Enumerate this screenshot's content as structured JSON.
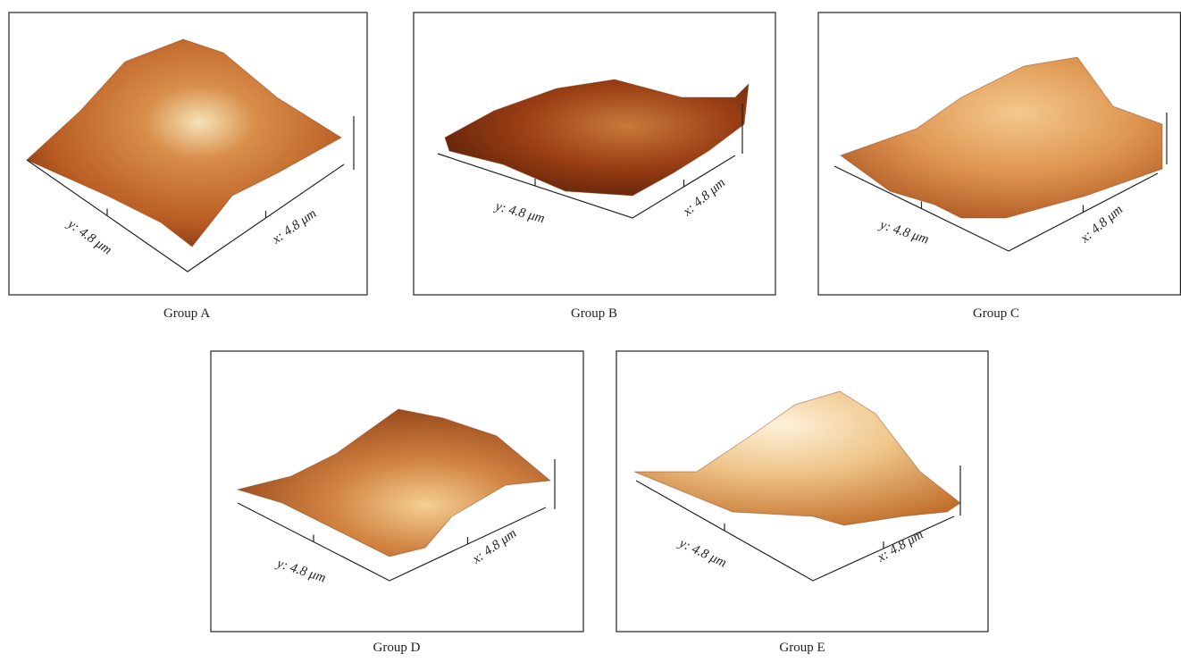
{
  "panels": [
    {
      "caption": "Group A",
      "y_label": "y: 4.8 μm",
      "x_label": "x: 4.8 μm"
    },
    {
      "caption": "Group B",
      "y_label": "y: 4.8 μm",
      "x_label": "x: 4.8 μm"
    },
    {
      "caption": "Group C",
      "y_label": "y: 4.8 μm",
      "x_label": "x: 4.8 μm"
    },
    {
      "caption": "Group D",
      "y_label": "y: 4.8 μm",
      "x_label": "x: 4.8 μm"
    },
    {
      "caption": "Group E",
      "y_label": "y: 4.8 μm",
      "x_label": "x: 4.8 μm"
    }
  ]
}
